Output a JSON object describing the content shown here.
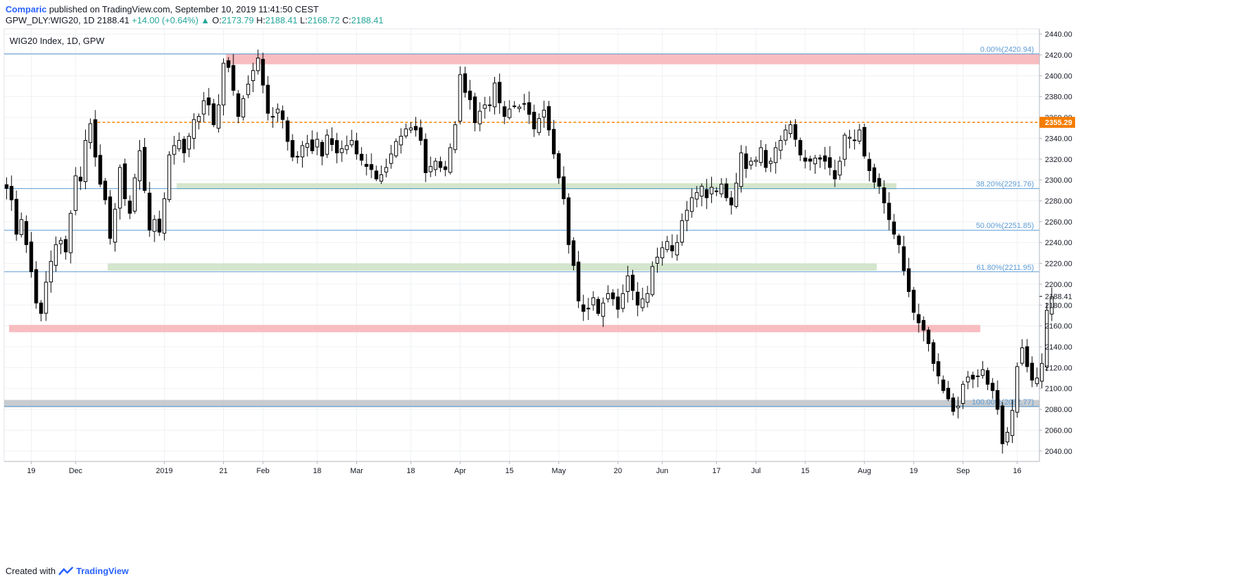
{
  "header": {
    "author": "Comparic",
    "published": " published on TradingView.com, September 10, 2019 11:41:50 CEST"
  },
  "ohlc": {
    "symbol": "GPW_DLY:WIG20, 1D",
    "last": "2188.41",
    "change": "+14.00 (+0.64%)",
    "arrow": "▲",
    "o_label": "O:",
    "o": "2173.79",
    "h_label": "H:",
    "h": "2188.41",
    "l_label": "L:",
    "l": "2168.72",
    "c_label": "C:",
    "c": "2188.41"
  },
  "footer": {
    "created": "Created with",
    "brand": "TradingView"
  },
  "chart_data": {
    "type": "candlestick",
    "title": "WIG20 Index, 1D, GPW",
    "ylim": [
      2030,
      2445
    ],
    "x_count": 210,
    "y_ticks": [
      2040,
      2060,
      2080,
      2100,
      2120,
      2140,
      2160,
      2180,
      2200,
      2220,
      2240,
      2260,
      2280,
      2300,
      2320,
      2340,
      2360,
      2380,
      2400,
      2420,
      2440
    ],
    "x_ticks": [
      {
        "label": "19",
        "i": 5
      },
      {
        "label": "Dec",
        "i": 14
      },
      {
        "label": "2019",
        "i": 32
      },
      {
        "label": "21",
        "i": 44
      },
      {
        "label": "Feb",
        "i": 52
      },
      {
        "label": "18",
        "i": 63
      },
      {
        "label": "Mar",
        "i": 71
      },
      {
        "label": "18",
        "i": 82
      },
      {
        "label": "Apr",
        "i": 92
      },
      {
        "label": "15",
        "i": 102
      },
      {
        "label": "May",
        "i": 112
      },
      {
        "label": "20",
        "i": 124
      },
      {
        "label": "Jun",
        "i": 133
      },
      {
        "label": "17",
        "i": 144
      },
      {
        "label": "Jul",
        "i": 152
      },
      {
        "label": "15",
        "i": 162
      },
      {
        "label": "Aug",
        "i": 174
      },
      {
        "label": "19",
        "i": 184
      },
      {
        "label": "Sep",
        "i": 194
      },
      {
        "label": "16",
        "i": 205
      }
    ],
    "fib_levels": [
      {
        "label": "0.00%(2420.94)",
        "value": 2420.94
      },
      {
        "label": "38.20%(2291.76)",
        "value": 2291.76
      },
      {
        "label": "50.00%(2251.85)",
        "value": 2251.85
      },
      {
        "label": "61.80%(2211.95)",
        "value": 2211.95
      },
      {
        "label": "100.00%(2082.77)",
        "value": 2082.77
      }
    ],
    "zones": [
      {
        "kind": "resistance",
        "from_i": 45,
        "to_i": 210,
        "low": 2411,
        "high": 2421,
        "color": "#f7b6b9"
      },
      {
        "kind": "support",
        "from_i": 35,
        "to_i": 181,
        "low": 2291,
        "high": 2297,
        "color": "#cfe3c8"
      },
      {
        "kind": "support",
        "from_i": 21,
        "to_i": 177,
        "low": 2213,
        "high": 2220,
        "color": "#cfe3c8"
      },
      {
        "kind": "support",
        "from_i": 1,
        "to_i": 198,
        "low": 2154,
        "high": 2161,
        "color": "#f7b6b9"
      },
      {
        "kind": "support",
        "from_i": 0,
        "to_i": 210,
        "low": 2082,
        "high": 2089,
        "color": "#c2c6cc"
      }
    ],
    "hline": {
      "value": 2355.29,
      "label": "2355.29",
      "from_i": 18,
      "color": "#f57c00"
    },
    "last_price": {
      "value": 2188.41,
      "label": "2188.41"
    },
    "closes": [
      2292,
      2281,
      2248,
      2262,
      2238,
      2212,
      2182,
      2172,
      2202,
      2222,
      2238,
      2242,
      2231,
      2268,
      2304,
      2299,
      2338,
      2354,
      2322,
      2296,
      2281,
      2244,
      2272,
      2312,
      2282,
      2268,
      2302,
      2328,
      2290,
      2252,
      2262,
      2250,
      2282,
      2324,
      2333,
      2338,
      2326,
      2342,
      2358,
      2361,
      2376,
      2372,
      2353,
      2372,
      2412,
      2408,
      2386,
      2361,
      2378,
      2392,
      2405,
      2417,
      2391,
      2364,
      2361,
      2368,
      2358,
      2337,
      2322,
      2322,
      2333,
      2335,
      2328,
      2339,
      2323,
      2343,
      2334,
      2326,
      2330,
      2333,
      2338,
      2325,
      2319,
      2313,
      2310,
      2301,
      2305,
      2312,
      2325,
      2337,
      2342,
      2349,
      2350,
      2348,
      2338,
      2307,
      2313,
      2318,
      2312,
      2310,
      2331,
      2353,
      2401,
      2384,
      2377,
      2355,
      2366,
      2372,
      2372,
      2393,
      2374,
      2361,
      2368,
      2371,
      2370,
      2373,
      2363,
      2349,
      2359,
      2367,
      2348,
      2325,
      2302,
      2282,
      2238,
      2218,
      2184,
      2174,
      2177,
      2187,
      2172,
      2182,
      2191,
      2186,
      2176,
      2191,
      2208,
      2194,
      2180,
      2186,
      2191,
      2217,
      2226,
      2235,
      2241,
      2232,
      2240,
      2261,
      2271,
      2283,
      2288,
      2294,
      2283,
      2293,
      2289,
      2296,
      2283,
      2276,
      2297,
      2326,
      2311,
      2318,
      2319,
      2331,
      2312,
      2318,
      2331,
      2338,
      2348,
      2353,
      2339,
      2324,
      2318,
      2318,
      2321,
      2320,
      2318,
      2312,
      2301,
      2318,
      2343,
      2341,
      2338,
      2348,
      2323,
      2309,
      2298,
      2294,
      2278,
      2262,
      2248,
      2238,
      2213,
      2193,
      2173,
      2163,
      2156,
      2143,
      2124,
      2112,
      2098,
      2090,
      2078,
      2083,
      2104,
      2111,
      2109,
      2112,
      2118,
      2104,
      2098,
      2080,
      2047,
      2058,
      2079,
      2121,
      2139,
      2121,
      2108,
      2110,
      2124,
      2175,
      2188
    ],
    "tick_labels_extra": [
      "2188.41"
    ]
  }
}
